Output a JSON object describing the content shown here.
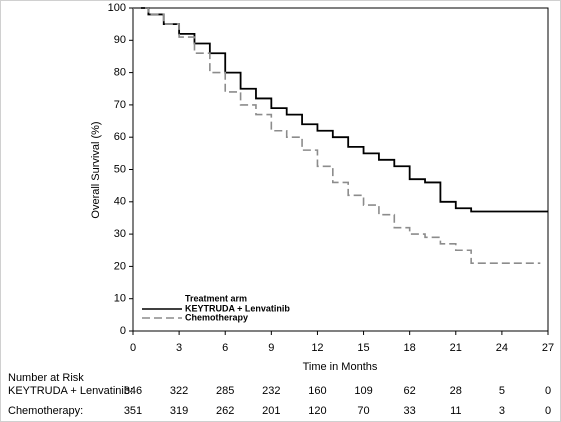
{
  "chart_data": {
    "type": "line",
    "y_label": "Overall Survival (%)",
    "x_label": "Time in Months",
    "xlim": [
      0,
      27
    ],
    "xticks": [
      0,
      3,
      6,
      9,
      12,
      15,
      18,
      21,
      24,
      27
    ],
    "ylim": [
      0,
      100
    ],
    "yticks": [
      0,
      10,
      20,
      30,
      40,
      50,
      60,
      70,
      80,
      90,
      100
    ],
    "legend_title": "Treatment arm",
    "series": [
      {
        "name": "KEYTRUDA + Lenvatinib",
        "color": "#000000",
        "line_style": "solid",
        "x": [
          0,
          1,
          2,
          3,
          4,
          5,
          6,
          7,
          8,
          9,
          10,
          11,
          12,
          13,
          14,
          15,
          16,
          17,
          18,
          19,
          20,
          21,
          22,
          27
        ],
        "values": [
          100,
          98,
          95,
          92,
          89,
          86,
          80,
          75,
          72,
          69,
          67,
          64,
          62,
          60,
          57,
          55,
          53,
          51,
          47,
          46,
          40,
          38,
          37,
          37
        ]
      },
      {
        "name": "Chemotherapy",
        "color": "#8c8c8c",
        "line_style": "dashed",
        "x": [
          0,
          1,
          2,
          3,
          4,
          5,
          6,
          7,
          8,
          9,
          10,
          11,
          12,
          13,
          14,
          15,
          16,
          17,
          18,
          19,
          20,
          21,
          22,
          26.5
        ],
        "values": [
          100,
          98,
          95,
          91,
          86,
          80,
          74,
          70,
          67,
          62,
          60,
          56,
          51,
          46,
          42,
          39,
          36,
          32,
          30,
          29,
          27,
          25,
          21,
          21
        ]
      }
    ],
    "risk_table": {
      "title": "Number at Risk",
      "rows": [
        {
          "name": "KEYTRUDA + Lenvatinib:",
          "values": [
            346,
            322,
            285,
            232,
            160,
            109,
            62,
            28,
            5,
            0
          ]
        },
        {
          "name": "Chemotherapy:",
          "values": [
            351,
            319,
            262,
            201,
            120,
            70,
            33,
            11,
            3,
            0
          ]
        }
      ]
    }
  }
}
